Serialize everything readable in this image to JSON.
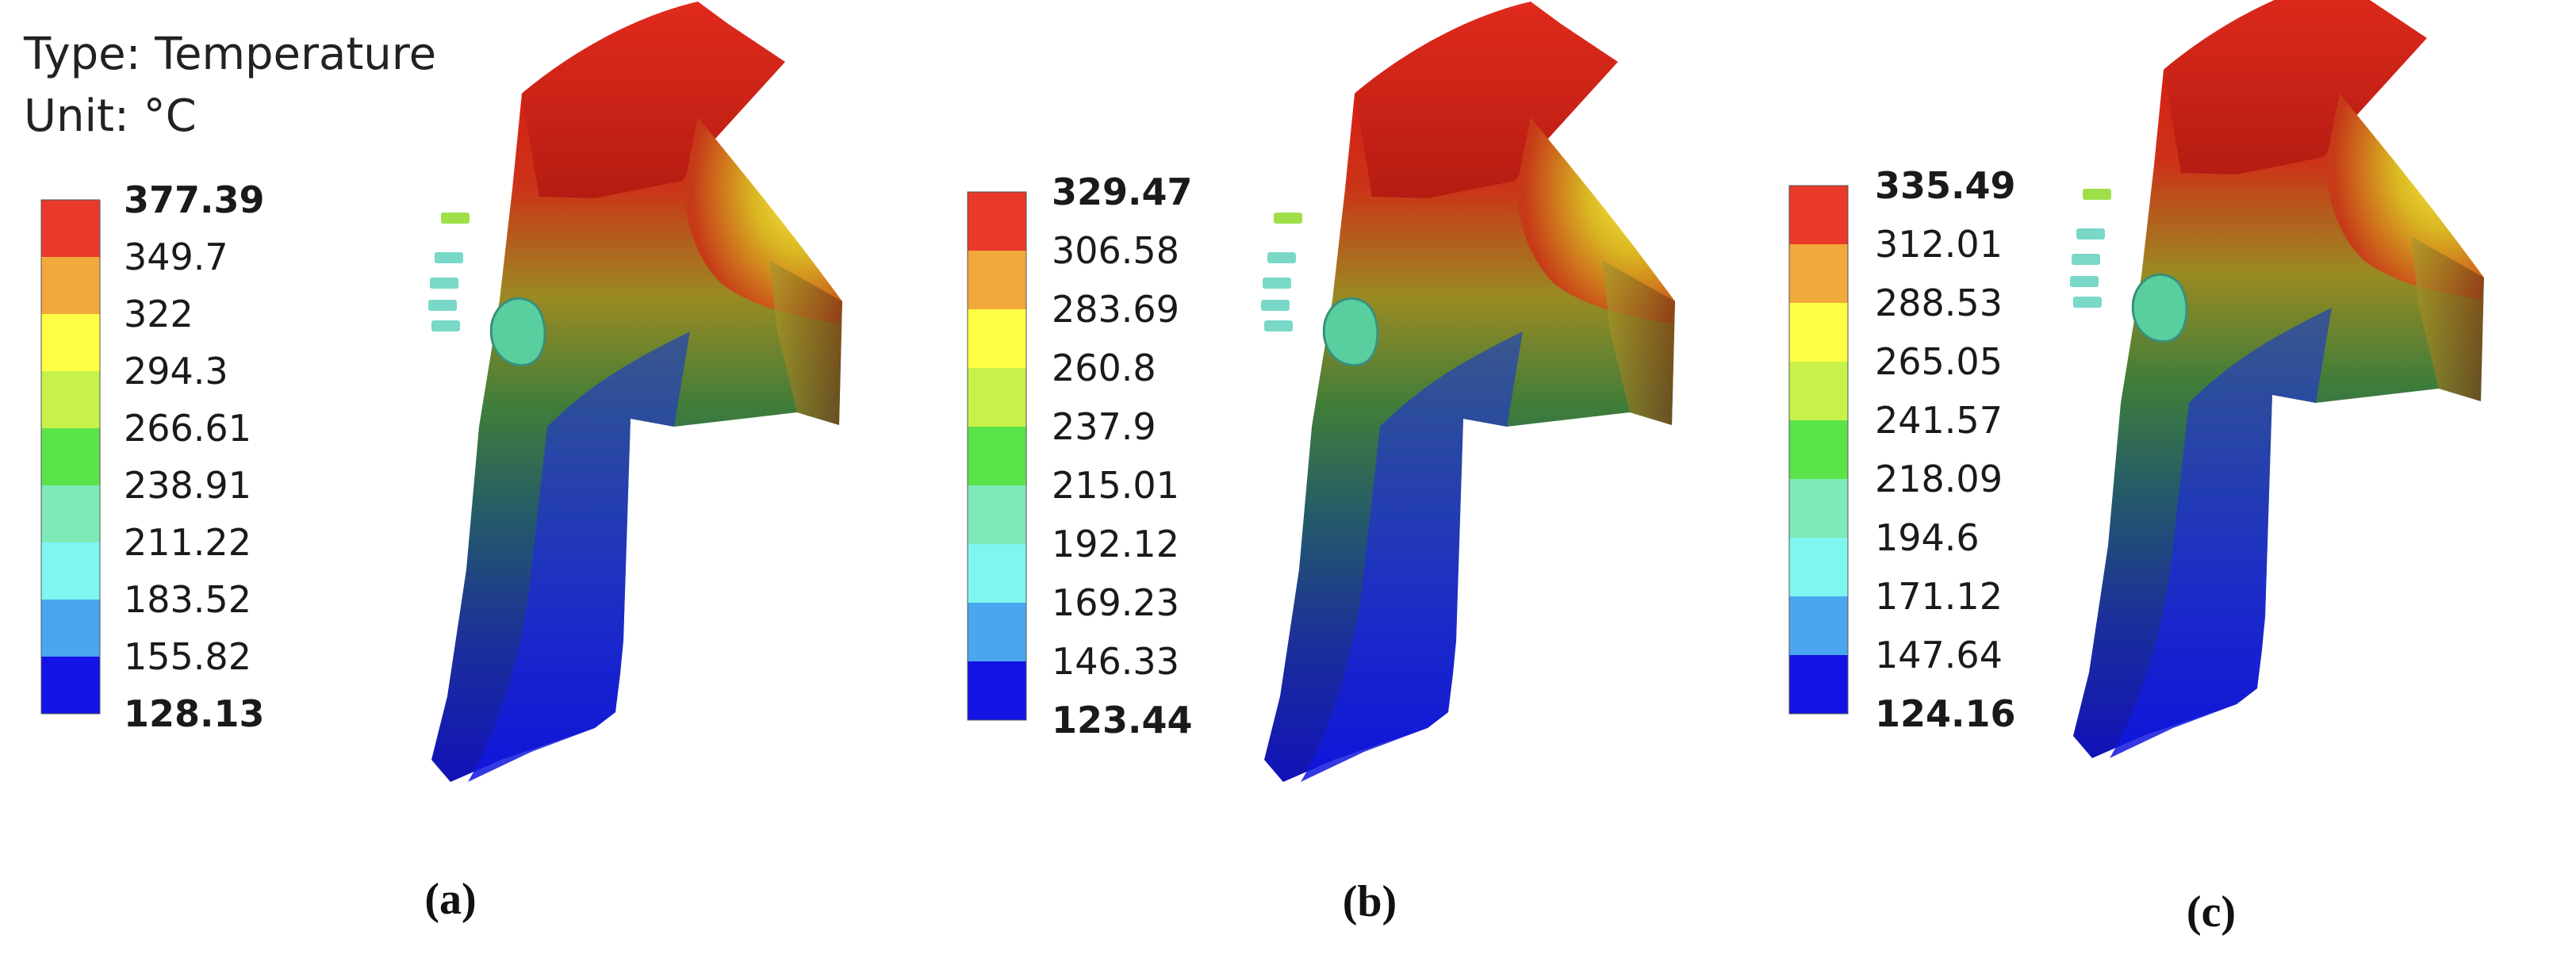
{
  "info": {
    "type_line": "Type: Temperature",
    "unit_line": "Unit: °C"
  },
  "legend_colors": [
    "#e8392a",
    "#f0a93a",
    "#ffff45",
    "#c7f24a",
    "#5be44a",
    "#7fe9b8",
    "#7ff6f0",
    "#4aa6ef",
    "#1313e6"
  ],
  "panels": [
    {
      "label": "(a)",
      "ticks": [
        "377.39",
        "349.7",
        "322",
        "294.3",
        "266.61",
        "238.91",
        "211.22",
        "183.52",
        "155.82",
        "128.13"
      ]
    },
    {
      "label": "(b)",
      "ticks": [
        "329.47",
        "306.58",
        "283.69",
        "260.8",
        "237.9",
        "215.01",
        "192.12",
        "169.23",
        "146.33",
        "123.44"
      ]
    },
    {
      "label": "(c)",
      "ticks": [
        "335.49",
        "312.01",
        "288.53",
        "265.05",
        "241.57",
        "218.09",
        "194.6",
        "171.12",
        "147.64",
        "124.16"
      ]
    }
  ]
}
